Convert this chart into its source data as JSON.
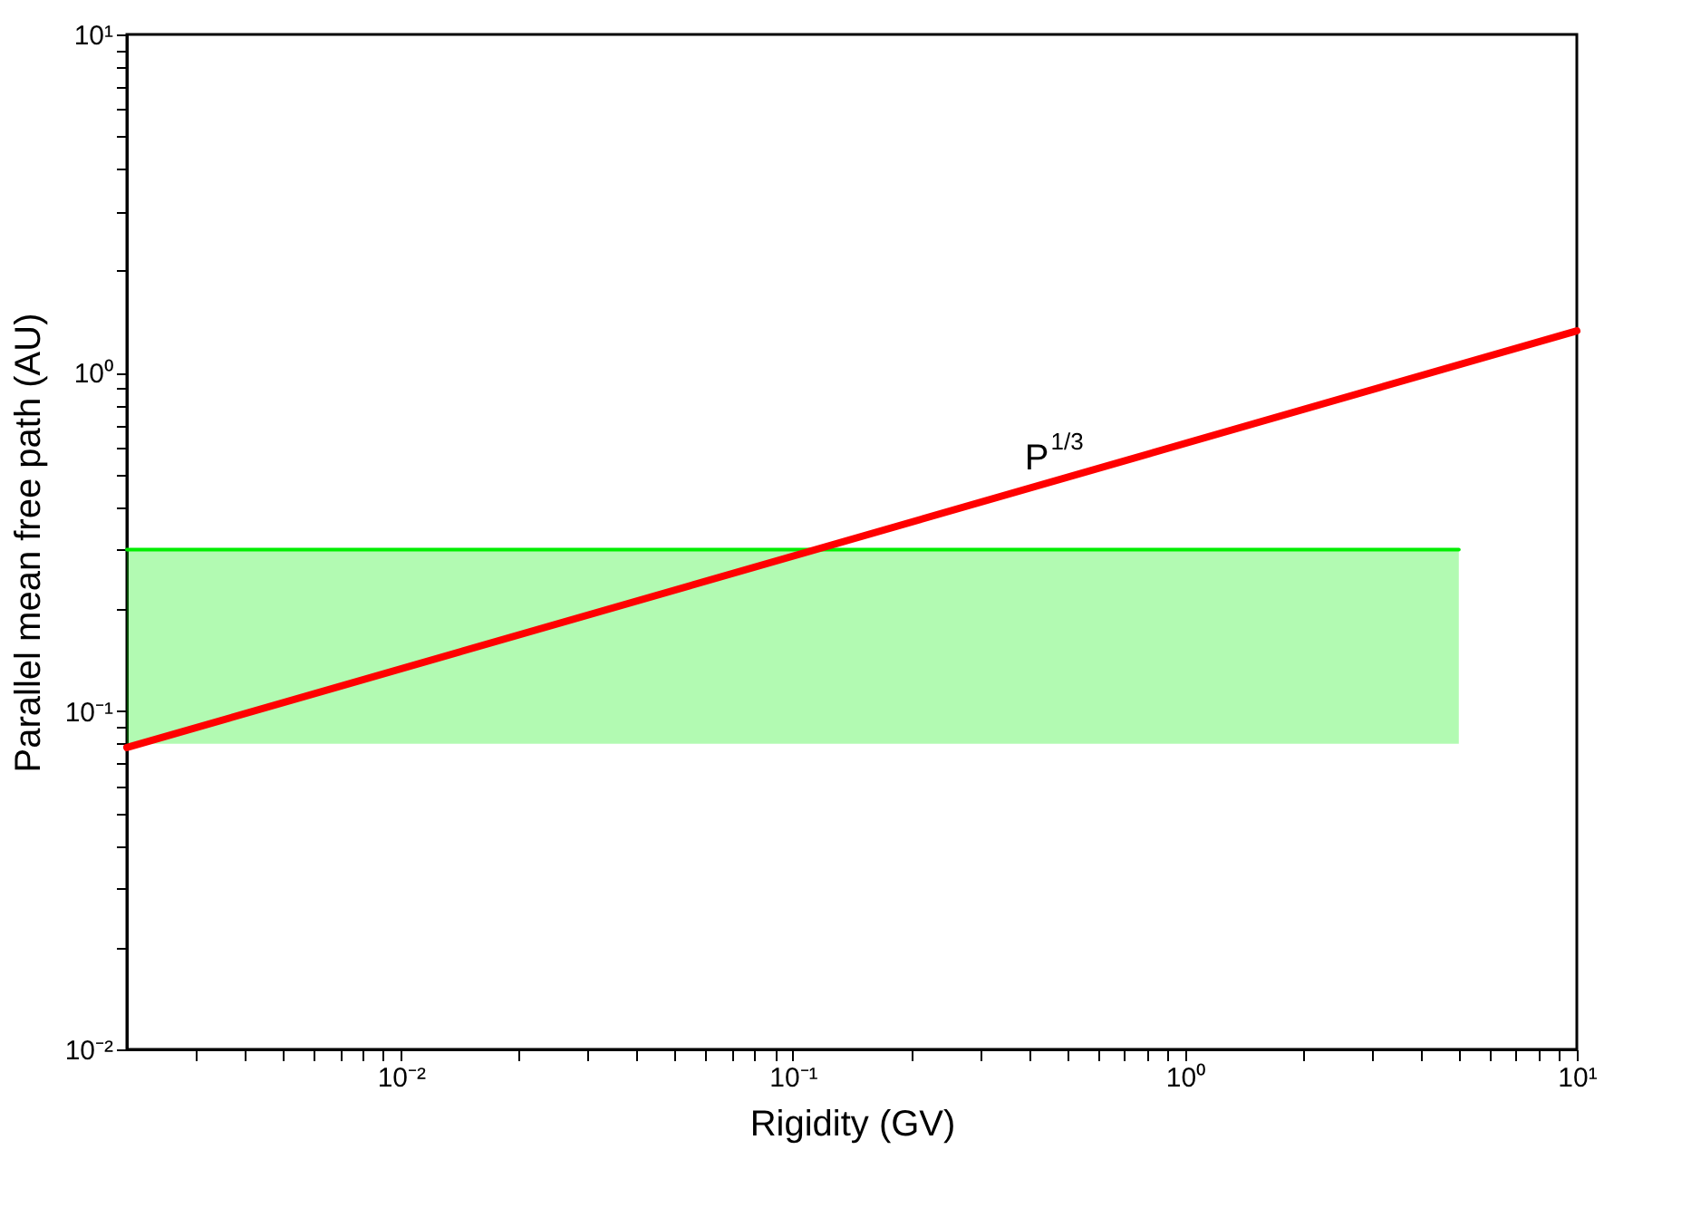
{
  "chart_data": {
    "type": "line",
    "xlabel": "Rigidity (GV)",
    "ylabel": "Parallel mean free path (AU)",
    "log": "xy",
    "grid": false,
    "xlim": [
      0.002,
      10
    ],
    "ylim": [
      0.01,
      10
    ],
    "xticks": [
      {
        "value": 0.003,
        "label": null
      },
      {
        "value": 0.004,
        "label": null
      },
      {
        "value": 0.005,
        "label": null
      },
      {
        "value": 0.006,
        "label": null
      },
      {
        "value": 0.007,
        "label": null
      },
      {
        "value": 0.008,
        "label": null
      },
      {
        "value": 0.009,
        "label": null
      },
      {
        "value": 0.01,
        "label": "10⁻²"
      },
      {
        "value": 0.02,
        "label": null
      },
      {
        "value": 0.03,
        "label": null
      },
      {
        "value": 0.04,
        "label": null
      },
      {
        "value": 0.05,
        "label": null
      },
      {
        "value": 0.06,
        "label": null
      },
      {
        "value": 0.07,
        "label": null
      },
      {
        "value": 0.08,
        "label": null
      },
      {
        "value": 0.09,
        "label": null
      },
      {
        "value": 0.1,
        "label": "10⁻¹"
      },
      {
        "value": 0.2,
        "label": null
      },
      {
        "value": 0.3,
        "label": null
      },
      {
        "value": 0.4,
        "label": null
      },
      {
        "value": 0.5,
        "label": null
      },
      {
        "value": 0.6,
        "label": null
      },
      {
        "value": 0.7,
        "label": null
      },
      {
        "value": 0.8,
        "label": null
      },
      {
        "value": 0.9,
        "label": null
      },
      {
        "value": 1,
        "label": "10⁰"
      },
      {
        "value": 2,
        "label": null
      },
      {
        "value": 3,
        "label": null
      },
      {
        "value": 4,
        "label": null
      },
      {
        "value": 5,
        "label": null
      },
      {
        "value": 6,
        "label": null
      },
      {
        "value": 7,
        "label": null
      },
      {
        "value": 8,
        "label": null
      },
      {
        "value": 9,
        "label": null
      },
      {
        "value": 10,
        "label": "10¹"
      }
    ],
    "yticks": [
      {
        "value": 0.01,
        "label": "10⁻²"
      },
      {
        "value": 0.02,
        "label": null
      },
      {
        "value": 0.03,
        "label": null
      },
      {
        "value": 0.04,
        "label": null
      },
      {
        "value": 0.05,
        "label": null
      },
      {
        "value": 0.06,
        "label": null
      },
      {
        "value": 0.07,
        "label": null
      },
      {
        "value": 0.08,
        "label": null
      },
      {
        "value": 0.09,
        "label": null
      },
      {
        "value": 0.1,
        "label": "10⁻¹"
      },
      {
        "value": 0.2,
        "label": null
      },
      {
        "value": 0.3,
        "label": null
      },
      {
        "value": 0.4,
        "label": null
      },
      {
        "value": 0.5,
        "label": null
      },
      {
        "value": 0.6,
        "label": null
      },
      {
        "value": 0.7,
        "label": null
      },
      {
        "value": 0.8,
        "label": null
      },
      {
        "value": 0.9,
        "label": null
      },
      {
        "value": 1,
        "label": "10⁰"
      },
      {
        "value": 2,
        "label": null
      },
      {
        "value": 3,
        "label": null
      },
      {
        "value": 4,
        "label": null
      },
      {
        "value": 5,
        "label": null
      },
      {
        "value": 6,
        "label": null
      },
      {
        "value": 7,
        "label": null
      },
      {
        "value": 8,
        "label": null
      },
      {
        "value": 9,
        "label": null
      },
      {
        "value": 10,
        "label": "10¹"
      }
    ],
    "series": [
      {
        "type": "line",
        "color": "#00ee00",
        "x": [
          0.002,
          5
        ],
        "values": [
          0.3,
          0.3
        ],
        "lower": [
          0.08,
          0.08
        ],
        "upper": [
          0.3,
          0.3
        ],
        "line_style": "solid",
        "marker": "none"
      },
      {
        "type": "line",
        "color": "#ff0000",
        "x": [
          0.002,
          10
        ],
        "values": [
          0.078,
          1.33
        ],
        "line_style": "solid",
        "marker": "none"
      }
    ],
    "annotations": [
      {
        "text": "P$^{1/3}$",
        "x": 0.45,
        "y": 0.47
      }
    ]
  }
}
